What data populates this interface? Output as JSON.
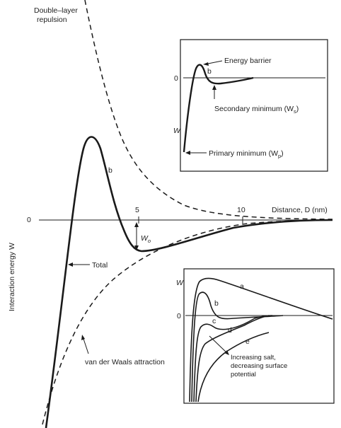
{
  "main": {
    "y_label": "Interaction energy W",
    "zero_label": "0",
    "tick_5": "5",
    "tick_10": "10",
    "x_label": "Distance, D (nm)",
    "repulsion_label_1": "Double–layer",
    "repulsion_label_2": "repulsion",
    "curve_b_label": "b",
    "wo_label": "W",
    "wo_sub": "o",
    "total_label": "Total",
    "vdw_label": "van der Waals attraction"
  },
  "inset_top": {
    "zero_label": "0",
    "w_label": "W",
    "energy_barrier": "Energy barrier",
    "curve_label": "b",
    "secondary_min": "Secondary minimum (W",
    "secondary_sub": "s",
    "primary_min": "Primary minimum (W",
    "primary_sub": "p",
    "close_paren": ")"
  },
  "inset_bottom": {
    "w_label": "W",
    "zero_label": "0",
    "curve_labels": [
      "a",
      "b",
      "c",
      "d",
      "e"
    ],
    "salt_line_1": "Increasing salt,",
    "salt_line_2": "decreasing surface",
    "salt_line_3": "potential"
  }
}
